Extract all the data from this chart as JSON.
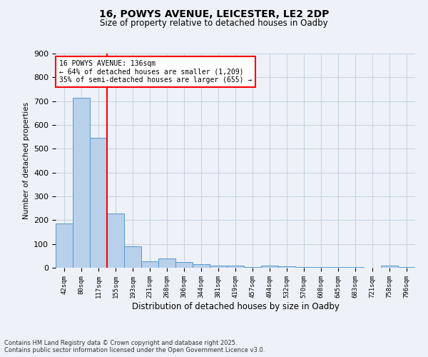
{
  "title_line1": "16, POWYS AVENUE, LEICESTER, LE2 2DP",
  "title_line2": "Size of property relative to detached houses in Oadby",
  "xlabel": "Distribution of detached houses by size in Oadby",
  "ylabel": "Number of detached properties",
  "categories": [
    "42sqm",
    "80sqm",
    "117sqm",
    "155sqm",
    "193sqm",
    "231sqm",
    "268sqm",
    "306sqm",
    "344sqm",
    "381sqm",
    "419sqm",
    "457sqm",
    "494sqm",
    "532sqm",
    "570sqm",
    "608sqm",
    "645sqm",
    "683sqm",
    "721sqm",
    "758sqm",
    "796sqm"
  ],
  "values": [
    185,
    715,
    545,
    228,
    90,
    28,
    38,
    25,
    15,
    10,
    8,
    3,
    8,
    5,
    4,
    3,
    2,
    2,
    1,
    8,
    2
  ],
  "bar_color": "#b8d0ea",
  "bar_edge_color": "#5599cc",
  "grid_color": "#c8d4e4",
  "background_color": "#eef2f8",
  "red_line_index": 2,
  "annotation_text": "16 POWYS AVENUE: 136sqm\n← 64% of detached houses are smaller (1,209)\n35% of semi-detached houses are larger (655) →",
  "annotation_box_color": "white",
  "annotation_box_edgecolor": "red",
  "footer_line1": "Contains HM Land Registry data © Crown copyright and database right 2025.",
  "footer_line2": "Contains public sector information licensed under the Open Government Licence v3.0.",
  "ylim": [
    0,
    900
  ],
  "yticks": [
    0,
    100,
    200,
    300,
    400,
    500,
    600,
    700,
    800,
    900
  ]
}
